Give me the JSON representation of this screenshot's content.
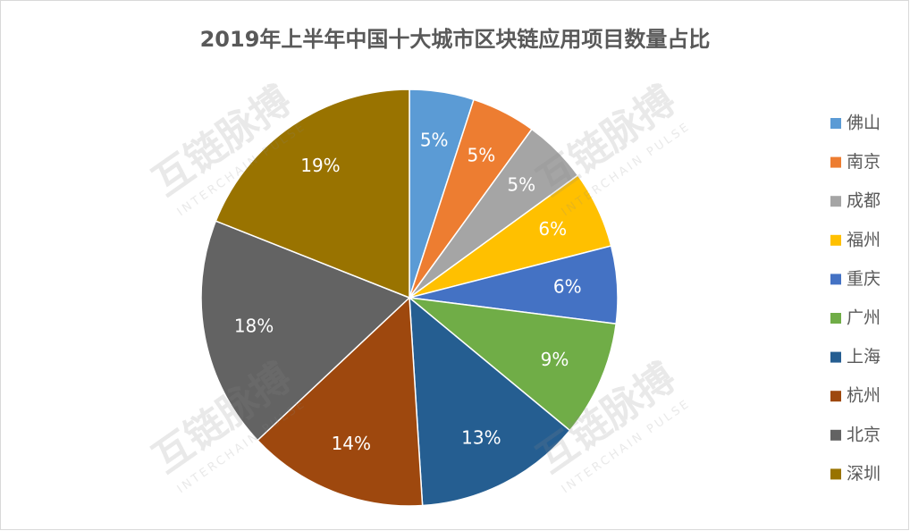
{
  "chart_data": {
    "type": "pie",
    "title": "2019年上半年中国十大城市区块链应用项目数量占比",
    "categories": [
      "佛山",
      "南京",
      "成都",
      "福州",
      "重庆",
      "广州",
      "上海",
      "杭州",
      "北京",
      "深圳"
    ],
    "values": [
      5,
      5,
      5,
      6,
      6,
      9,
      13,
      14,
      18,
      19
    ],
    "value_labels": [
      "5%",
      "5%",
      "5%",
      "6%",
      "6%",
      "9%",
      "13%",
      "14%",
      "18%",
      "19%"
    ],
    "colors": [
      "#5b9bd5",
      "#ed7d31",
      "#a5a5a5",
      "#ffc000",
      "#4472c4",
      "#70ad47",
      "#255e91",
      "#9e480e",
      "#636363",
      "#997300"
    ],
    "legend": "right"
  },
  "watermark": {
    "text": "互链脉搏",
    "subtext": "INTERCHAIN PULSE"
  }
}
